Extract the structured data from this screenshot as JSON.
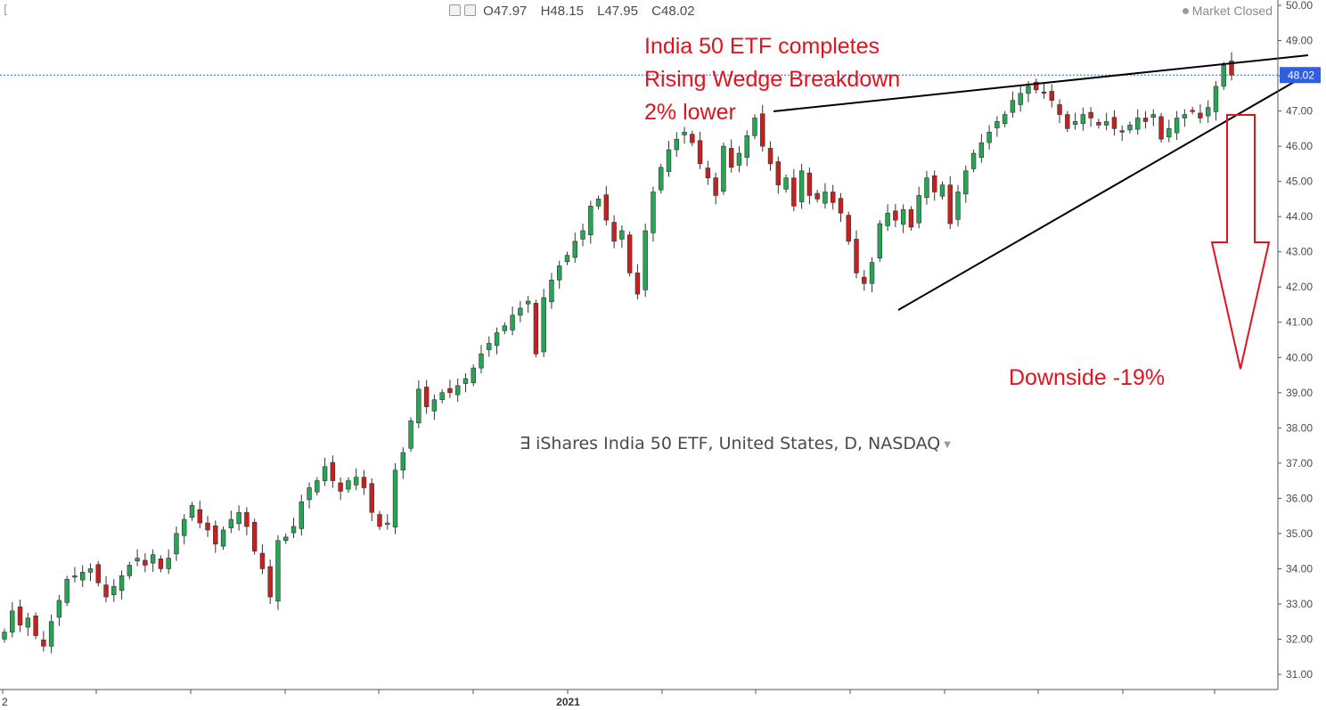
{
  "header": {
    "corner_glyph": "[",
    "ohlc": {
      "open": "O47.97",
      "high": "H48.15",
      "low": "L47.95",
      "close": "C48.02"
    },
    "market_status": "Market Closed"
  },
  "annotations": {
    "title_lines": [
      "India 50 ETF completes",
      "Rising Wedge Breakdown",
      "2% lower"
    ],
    "downside": "Downside -19%"
  },
  "legend": {
    "glyph": "∃",
    "symbol_text": "iShares India 50 ETF, United States, D, NASDAQ"
  },
  "colors": {
    "up": "#26a654",
    "down": "#c8201e",
    "annotation": "#e0141e",
    "wedge": "#000000",
    "price_line": "#2f5fe0"
  },
  "chart_data": {
    "type": "candlestick",
    "title": "",
    "yaxis": {
      "ticks": [
        "31.00",
        "32.00",
        "33.00",
        "34.00",
        "35.00",
        "36.00",
        "37.00",
        "38.00",
        "39.00",
        "40.00",
        "41.00",
        "42.00",
        "43.00",
        "44.00",
        "45.00",
        "46.00",
        "47.00",
        "48.00",
        "49.00",
        "50.00"
      ],
      "range": [
        30.5,
        50.2
      ]
    },
    "xaxis": {
      "labels": [
        {
          "pos": 0.0,
          "text": "2"
        },
        {
          "pos": 0.425,
          "text": "2021"
        }
      ]
    },
    "last_price": 48.02,
    "closes": [
      32.2,
      32.8,
      32.4,
      32.6,
      32.1,
      31.8,
      32.5,
      33.1,
      33.7,
      33.8,
      33.9,
      34.0,
      33.6,
      33.2,
      33.5,
      33.8,
      34.1,
      34.3,
      34.1,
      34.4,
      34.0,
      34.3,
      35.0,
      35.4,
      35.8,
      35.3,
      35.1,
      34.7,
      35.1,
      35.4,
      35.6,
      35.2,
      34.5,
      34.0,
      33.2,
      34.8,
      34.9,
      35.2,
      35.9,
      36.3,
      36.5,
      36.9,
      36.5,
      36.2,
      36.5,
      36.6,
      36.3,
      35.6,
      35.2,
      35.3,
      36.8,
      37.3,
      38.2,
      39.1,
      38.6,
      38.8,
      39.0,
      39.0,
      39.2,
      39.4,
      39.7,
      40.1,
      40.4,
      40.7,
      40.9,
      41.2,
      41.4,
      41.6,
      40.1,
      41.7,
      42.2,
      42.6,
      42.9,
      43.3,
      43.6,
      44.3,
      44.5,
      43.9,
      43.3,
      43.6,
      42.4,
      41.8,
      43.6,
      44.7,
      45.4,
      45.9,
      46.2,
      46.4,
      46.1,
      45.5,
      45.1,
      44.6,
      46.0,
      45.4,
      45.8,
      46.3,
      46.8,
      46.0,
      45.5,
      44.9,
      45.1,
      44.3,
      45.3,
      44.6,
      44.5,
      44.7,
      44.4,
      44.1,
      43.3,
      42.4,
      42.1,
      42.7,
      43.8,
      44.1,
      43.9,
      44.2,
      43.7,
      44.6,
      45.1,
      44.7,
      44.9,
      43.8,
      44.7,
      45.3,
      45.8,
      46.1,
      46.4,
      46.7,
      46.9,
      47.3,
      47.5,
      47.7,
      47.6,
      47.5,
      47.3,
      46.9,
      46.5,
      46.7,
      46.9,
      46.8,
      46.6,
      46.7,
      46.5,
      46.4,
      46.6,
      46.8,
      46.7,
      46.9,
      46.2,
      46.5,
      46.8,
      46.9,
      47.0,
      46.8,
      47.1,
      47.7,
      48.3,
      48.02
    ]
  }
}
